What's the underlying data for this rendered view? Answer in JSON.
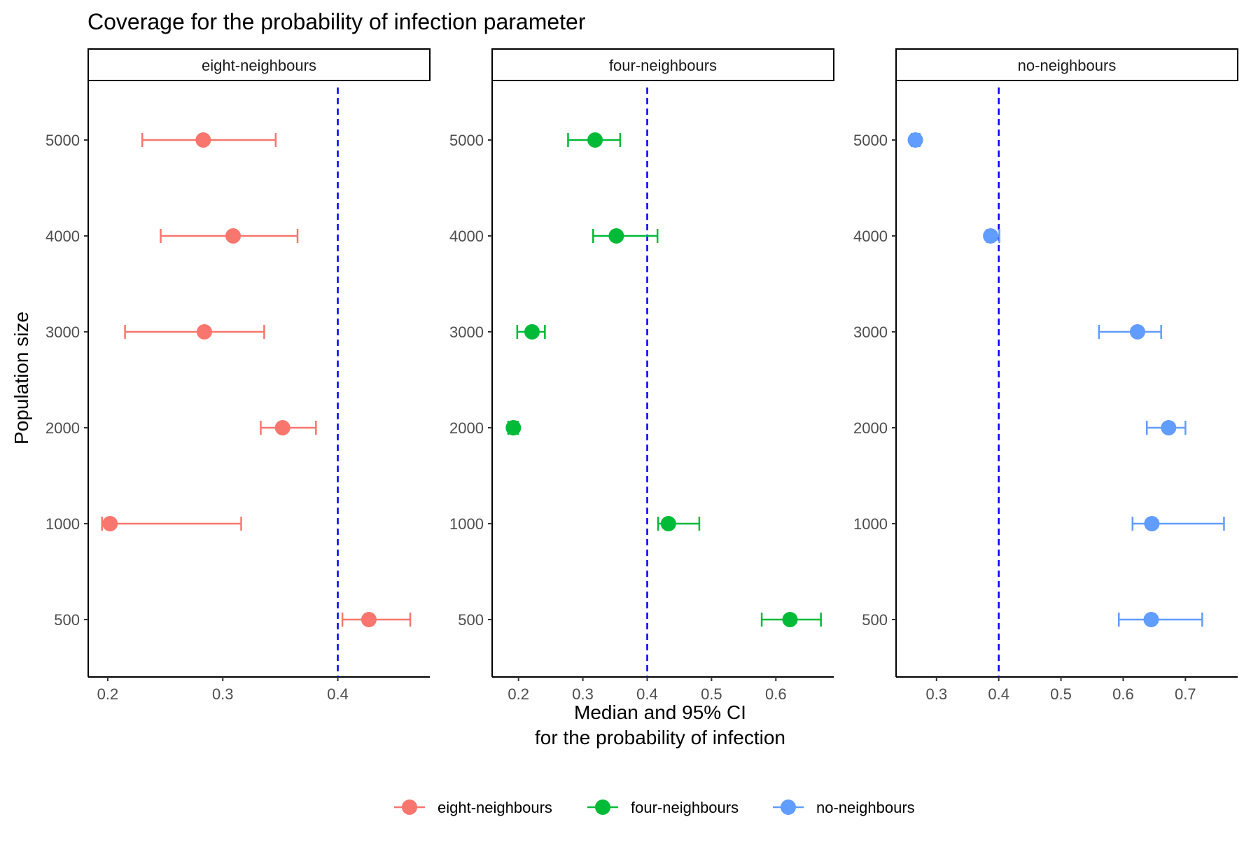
{
  "chart_data": {
    "type": "scatter",
    "title": "Coverage for the probability of infection parameter",
    "xlabel_line1": "Median and 95% CI",
    "xlabel_line2": "for the probability of infection",
    "ylabel": "Population size",
    "categories": [
      "500",
      "1000",
      "2000",
      "3000",
      "4000",
      "5000"
    ],
    "reference_line": {
      "x": 0.4,
      "color": "#0000ff",
      "style": "dashed"
    },
    "legend_position": "bottom",
    "grid": false,
    "panels": [
      {
        "name": "eight-neighbours",
        "color": "#f8766d",
        "xlim": [
          0.183,
          0.48
        ],
        "xticks": [
          0.2,
          0.3,
          0.4
        ],
        "tick_labels": [
          "0.2",
          "0.3",
          "0.4"
        ],
        "points": [
          {
            "y": "5000",
            "median": 0.283,
            "lower": 0.23,
            "upper": 0.346
          },
          {
            "y": "4000",
            "median": 0.309,
            "lower": 0.246,
            "upper": 0.365
          },
          {
            "y": "3000",
            "median": 0.284,
            "lower": 0.215,
            "upper": 0.336
          },
          {
            "y": "2000",
            "median": 0.352,
            "lower": 0.333,
            "upper": 0.381
          },
          {
            "y": "1000",
            "median": 0.202,
            "lower": 0.195,
            "upper": 0.316
          },
          {
            "y": "500",
            "median": 0.427,
            "lower": 0.404,
            "upper": 0.463
          }
        ]
      },
      {
        "name": "four-neighbours",
        "color": "#00ba38",
        "xlim": [
          0.159,
          0.69
        ],
        "xticks": [
          0.2,
          0.3,
          0.4,
          0.5,
          0.6
        ],
        "tick_labels": [
          "0.2",
          "0.3",
          "0.4",
          "0.5",
          "0.6"
        ],
        "points": [
          {
            "y": "5000",
            "median": 0.319,
            "lower": 0.277,
            "upper": 0.358
          },
          {
            "y": "4000",
            "median": 0.352,
            "lower": 0.316,
            "upper": 0.416
          },
          {
            "y": "3000",
            "median": 0.221,
            "lower": 0.198,
            "upper": 0.241
          },
          {
            "y": "2000",
            "median": 0.192,
            "lower": 0.184,
            "upper": 0.199
          },
          {
            "y": "1000",
            "median": 0.433,
            "lower": 0.417,
            "upper": 0.481
          },
          {
            "y": "500",
            "median": 0.622,
            "lower": 0.578,
            "upper": 0.67
          }
        ]
      },
      {
        "name": "no-neighbours",
        "color": "#619cff",
        "xlim": [
          0.235,
          0.784
        ],
        "xticks": [
          0.3,
          0.4,
          0.5,
          0.6,
          0.7
        ],
        "tick_labels": [
          "0.3",
          "0.4",
          "0.5",
          "0.6",
          "0.7"
        ],
        "points": [
          {
            "y": "5000",
            "median": 0.266,
            "lower": 0.26,
            "upper": 0.273
          },
          {
            "y": "4000",
            "median": 0.387,
            "lower": 0.381,
            "upper": 0.401
          },
          {
            "y": "3000",
            "median": 0.623,
            "lower": 0.561,
            "upper": 0.661
          },
          {
            "y": "2000",
            "median": 0.673,
            "lower": 0.638,
            "upper": 0.7
          },
          {
            "y": "1000",
            "median": 0.646,
            "lower": 0.615,
            "upper": 0.762
          },
          {
            "y": "500",
            "median": 0.645,
            "lower": 0.593,
            "upper": 0.727
          }
        ]
      }
    ],
    "legend": [
      {
        "label": "eight-neighbours",
        "color": "#f8766d"
      },
      {
        "label": "four-neighbours",
        "color": "#00ba38"
      },
      {
        "label": "no-neighbours",
        "color": "#619cff"
      }
    ]
  }
}
